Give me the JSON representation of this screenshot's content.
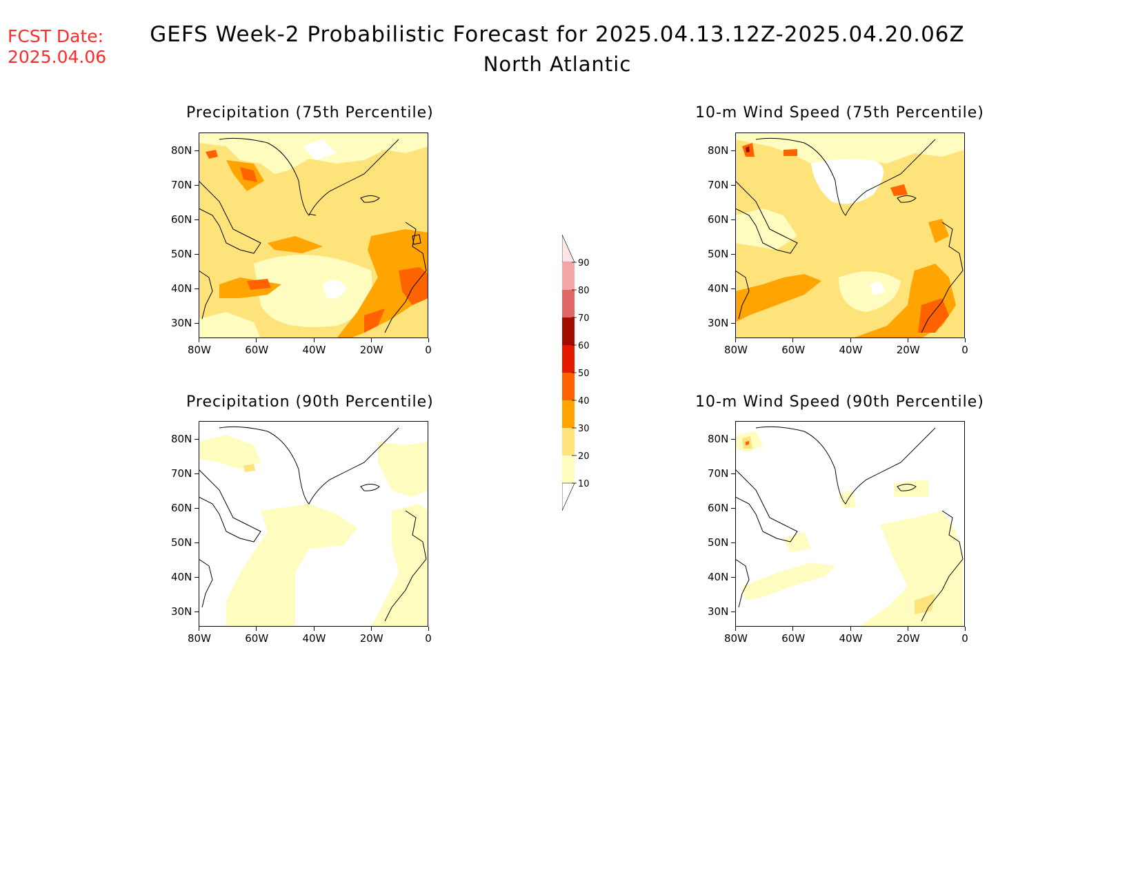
{
  "fcst": {
    "label": "FCST Date:",
    "date": "2025.04.06"
  },
  "title": {
    "main": "GEFS Week-2 Probabilistic Forecast for 2025.04.13.12Z-2025.04.20.06Z",
    "region": "North Atlantic"
  },
  "panels": [
    {
      "id": "precip75",
      "title": "Precipitation (75th Percentile)"
    },
    {
      "id": "wind75",
      "title": "10-m Wind Speed (75th Percentile)"
    },
    {
      "id": "precip90",
      "title": "Precipitation (90th Percentile)"
    },
    {
      "id": "wind90",
      "title": "10-m Wind Speed (90th Percentile)"
    }
  ],
  "axes": {
    "lat_labels": [
      "80N",
      "70N",
      "60N",
      "50N",
      "40N",
      "30N"
    ],
    "lon_labels": [
      "80W",
      "60W",
      "40W",
      "20W",
      "0"
    ]
  },
  "colorbar": {
    "levels": [
      "10",
      "20",
      "30",
      "40",
      "50",
      "60",
      "70",
      "80",
      "90"
    ],
    "colors": [
      "#fffcc0",
      "#fde37a",
      "#ffa400",
      "#ff6300",
      "#e41a00",
      "#a20c00",
      "#e06666",
      "#f4a6a6",
      "#ffe6e6"
    ]
  }
}
